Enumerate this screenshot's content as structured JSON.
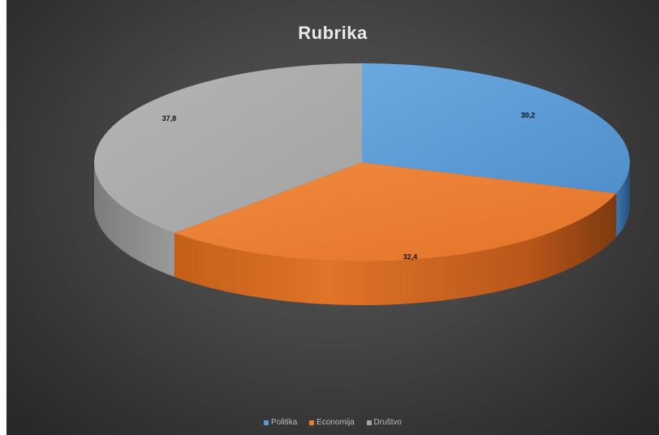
{
  "chart_data": {
    "type": "pie",
    "title": "Rubrika",
    "categories": [
      "Politika",
      "Economija",
      "Društvo"
    ],
    "values": [
      30.2,
      32.4,
      37.8
    ],
    "labels": [
      "30,2",
      "32,4",
      "37,8"
    ],
    "colors": [
      "#5b9bd5",
      "#ed7d31",
      "#a5a5a5"
    ],
    "legend_position": "bottom",
    "three_d": true
  },
  "legend": [
    {
      "label": "Politika",
      "color": "#5b9bd5"
    },
    {
      "label": "Economija",
      "color": "#ed7d31"
    },
    {
      "label": "Društvo",
      "color": "#a5a5a5"
    }
  ]
}
